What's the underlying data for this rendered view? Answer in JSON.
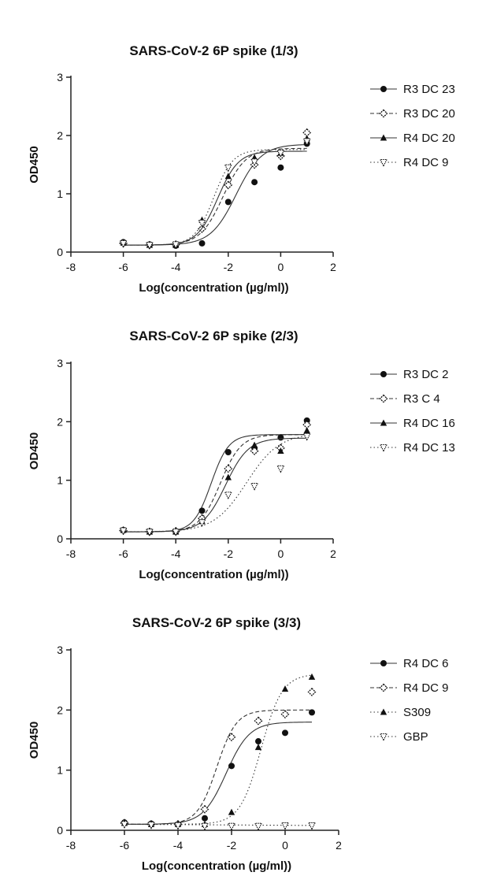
{
  "chart_data": [
    {
      "type": "scatter",
      "title": "SARS-CoV-2 6P spike (1/3)",
      "xlabel": "Log(concentration (µg/ml))",
      "ylabel": "OD450",
      "xlim": [
        -8,
        2
      ],
      "ylim": [
        0,
        3
      ],
      "xticks": [
        -8,
        -6,
        -4,
        -2,
        0,
        2
      ],
      "yticks": [
        0,
        1,
        2,
        3
      ],
      "legend_position": "right",
      "x": [
        -6,
        -5,
        -4,
        -3,
        -2,
        -1,
        0,
        1
      ],
      "series": [
        {
          "name": "R3 DC 23",
          "marker": "circle",
          "curve": "solid",
          "values": [
            0.17,
            0.13,
            0.11,
            0.15,
            0.86,
            1.2,
            1.45,
            1.86
          ],
          "fit": {
            "bottom": 0.12,
            "top": 1.85,
            "logec50": -1.7,
            "hill": 0.9
          }
        },
        {
          "name": "R3 DC 20",
          "marker": "diamond",
          "curve": "dash",
          "values": [
            0.15,
            0.12,
            0.13,
            0.4,
            1.15,
            1.5,
            1.65,
            2.05
          ],
          "fit": {
            "bottom": 0.12,
            "top": 1.78,
            "logec50": -2.2,
            "hill": 1.0
          }
        },
        {
          "name": "R4 DC 20",
          "marker": "triangle",
          "curve": "solid",
          "values": [
            0.16,
            0.12,
            0.12,
            0.55,
            1.3,
            1.62,
            1.7,
            1.95
          ],
          "fit": {
            "bottom": 0.12,
            "top": 1.73,
            "logec50": -2.4,
            "hill": 1.1
          }
        },
        {
          "name": "R4 DC 9",
          "marker": "triangle-down",
          "curve": "dot",
          "values": [
            0.15,
            0.12,
            0.13,
            0.5,
            1.45,
            1.55,
            1.7,
            1.9
          ],
          "fit": {
            "bottom": 0.12,
            "top": 1.76,
            "logec50": -2.55,
            "hill": 1.2
          }
        }
      ]
    },
    {
      "type": "scatter",
      "title": "SARS-CoV-2 6P spike (2/3)",
      "xlabel": "Log(concentration (µg/ml))",
      "ylabel": "OD450",
      "xlim": [
        -8,
        2
      ],
      "ylim": [
        0,
        3
      ],
      "xticks": [
        -8,
        -6,
        -4,
        -2,
        0,
        2
      ],
      "yticks": [
        0,
        1,
        2,
        3
      ],
      "legend_position": "right",
      "x": [
        -6,
        -5,
        -4,
        -3,
        -2,
        -1,
        0,
        1
      ],
      "series": [
        {
          "name": "R3 DC 2",
          "marker": "circle",
          "curve": "solid",
          "values": [
            0.15,
            0.12,
            0.12,
            0.48,
            1.48,
            1.55,
            1.73,
            2.02
          ],
          "fit": {
            "bottom": 0.12,
            "top": 1.78,
            "logec50": -2.65,
            "hill": 1.3
          }
        },
        {
          "name": "R3 C 4",
          "marker": "diamond",
          "curve": "dash",
          "values": [
            0.14,
            0.12,
            0.13,
            0.35,
            1.2,
            1.5,
            1.55,
            1.95
          ],
          "fit": {
            "bottom": 0.12,
            "top": 1.78,
            "logec50": -2.3,
            "hill": 1.1
          }
        },
        {
          "name": "R4 DC 16",
          "marker": "triangle",
          "curve": "solid",
          "values": [
            0.15,
            0.12,
            0.12,
            0.3,
            1.05,
            1.6,
            1.5,
            1.85
          ],
          "fit": {
            "bottom": 0.12,
            "top": 1.72,
            "logec50": -2.1,
            "hill": 1.0
          }
        },
        {
          "name": "R4 DC 13",
          "marker": "triangle-down",
          "curve": "dot",
          "values": [
            0.14,
            0.12,
            0.12,
            0.28,
            0.75,
            0.9,
            1.2,
            1.75
          ],
          "fit": {
            "bottom": 0.12,
            "top": 1.8,
            "logec50": -1.3,
            "hill": 0.7
          }
        }
      ]
    },
    {
      "type": "scatter",
      "title": "SARS-CoV-2 6P spike (3/3)",
      "xlabel": "Log(concentration (µg/ml))",
      "ylabel": "OD450",
      "xlim": [
        -8,
        2
      ],
      "ylim": [
        0,
        3
      ],
      "xticks": [
        -8,
        -6,
        -4,
        -2,
        0,
        2
      ],
      "yticks": [
        0,
        1,
        2,
        3
      ],
      "legend_position": "right",
      "x": [
        -6,
        -5,
        -4,
        -3,
        -2,
        -1,
        0,
        1
      ],
      "series": [
        {
          "name": "R4 DC 6",
          "marker": "circle",
          "curve": "solid",
          "values": [
            0.13,
            0.11,
            0.1,
            0.2,
            1.07,
            1.48,
            1.62,
            1.96
          ],
          "fit": {
            "bottom": 0.1,
            "top": 1.8,
            "logec50": -2.2,
            "hill": 1.0
          }
        },
        {
          "name": "R4 DC 9",
          "marker": "diamond",
          "curve": "dash",
          "values": [
            0.12,
            0.1,
            0.1,
            0.35,
            1.55,
            1.82,
            1.93,
            2.3
          ],
          "fit": {
            "bottom": 0.1,
            "top": 2.0,
            "logec50": -2.55,
            "hill": 1.2
          }
        },
        {
          "name": "S309",
          "marker": "triangle",
          "curve": "dot",
          "values": [
            0.12,
            0.1,
            0.1,
            0.1,
            0.3,
            1.38,
            2.35,
            2.55
          ],
          "fit": {
            "bottom": 0.1,
            "top": 2.6,
            "logec50": -0.9,
            "hill": 1.1
          }
        },
        {
          "name": "GBP",
          "marker": "triangle-down",
          "curve": "dot",
          "values": [
            0.1,
            0.09,
            0.08,
            0.07,
            0.07,
            0.07,
            0.08,
            0.08
          ],
          "fit": null
        }
      ]
    }
  ]
}
